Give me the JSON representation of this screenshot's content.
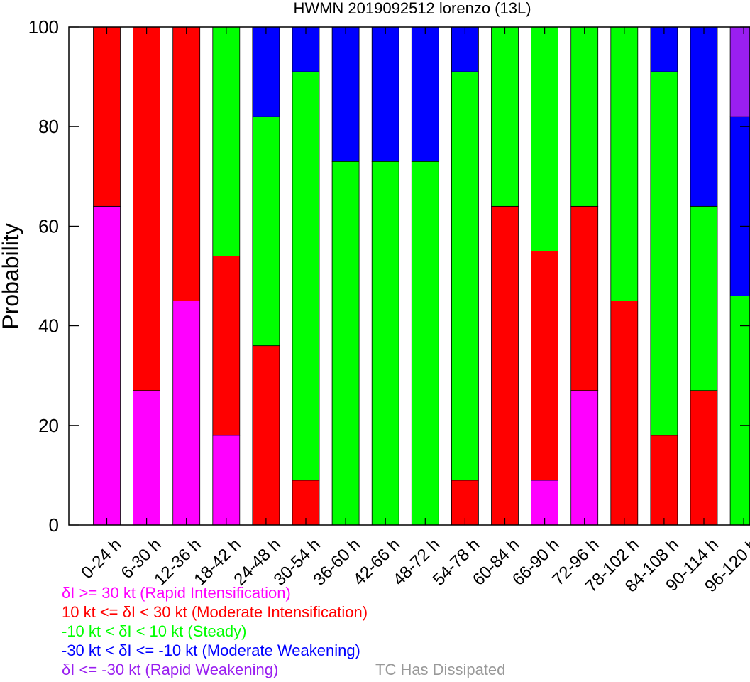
{
  "chart_data": {
    "type": "bar",
    "stacked": true,
    "title": "HWMN 2019092512 lorenzo (13L)",
    "xlabel": "",
    "ylabel": "Probability",
    "ylim": [
      0,
      100
    ],
    "yticks": [
      0,
      20,
      40,
      60,
      80,
      100
    ],
    "grid": false,
    "categories": [
      "0-24 h",
      "6-30 h",
      "12-36 h",
      "18-42 h",
      "24-48 h",
      "30-54 h",
      "36-60 h",
      "42-66 h",
      "48-72 h",
      "54-78 h",
      "60-84 h",
      "66-90 h",
      "72-96 h",
      "78-102 h",
      "84-108 h",
      "90-114 h",
      "96-120 h"
    ],
    "series": [
      {
        "key": "rapid_intensification",
        "color": "#ff00ff",
        "values": [
          64,
          27,
          45,
          18,
          0,
          0,
          0,
          0,
          0,
          0,
          0,
          9,
          27,
          0,
          0,
          0,
          0
        ]
      },
      {
        "key": "moderate_intensification",
        "color": "#ff0000",
        "values": [
          36,
          73,
          55,
          36,
          36,
          9,
          0,
          0,
          0,
          9,
          64,
          46,
          37,
          45,
          18,
          27,
          0
        ]
      },
      {
        "key": "steady",
        "color": "#00ff00",
        "values": [
          0,
          0,
          0,
          46,
          46,
          82,
          73,
          73,
          73,
          82,
          36,
          45,
          36,
          55,
          73,
          37,
          46
        ]
      },
      {
        "key": "moderate_weakening",
        "color": "#0000ff",
        "values": [
          0,
          0,
          0,
          0,
          18,
          9,
          27,
          27,
          27,
          9,
          0,
          0,
          0,
          0,
          9,
          36,
          36
        ]
      },
      {
        "key": "rapid_weakening",
        "color": "#9a1ff0",
        "values": [
          0,
          0,
          0,
          0,
          0,
          0,
          0,
          0,
          0,
          0,
          0,
          0,
          0,
          0,
          0,
          0,
          18
        ]
      }
    ],
    "legend": {
      "placement": "bottom-left",
      "entries": [
        {
          "text": "δI >= 30 kt (Rapid Intensification)",
          "color": "#ff00ff"
        },
        {
          "text": "10 kt <= δI < 30 kt (Moderate Intensification)",
          "color": "#ff0000"
        },
        {
          "text": "-10 kt < δI < 10 kt (Steady)",
          "color": "#00ff00"
        },
        {
          "text": "-30 kt < δI <= -10 kt (Moderate Weakening)",
          "color": "#0000ff"
        },
        {
          "text": "δI <= -30 kt (Rapid Weakening)",
          "color": "#9a1ff0"
        }
      ],
      "dissipated": {
        "text": "TC Has Dissipated",
        "color": "#999999"
      }
    }
  }
}
